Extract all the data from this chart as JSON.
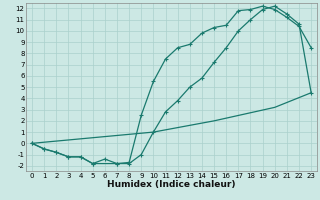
{
  "title": "",
  "xlabel": "Humidex (Indice chaleur)",
  "xlim": [
    -0.5,
    23.5
  ],
  "ylim": [
    -2.5,
    12.5
  ],
  "xticks": [
    0,
    1,
    2,
    3,
    4,
    5,
    6,
    7,
    8,
    9,
    10,
    11,
    12,
    13,
    14,
    15,
    16,
    17,
    18,
    19,
    20,
    21,
    22,
    23
  ],
  "yticks": [
    -2,
    -1,
    0,
    1,
    2,
    3,
    4,
    5,
    6,
    7,
    8,
    9,
    10,
    11,
    12
  ],
  "bg_color": "#cce8e4",
  "grid_color": "#aad0cc",
  "line_color": "#1a7a6e",
  "line1_x": [
    0,
    1,
    2,
    3,
    4,
    5,
    7,
    8,
    9,
    10,
    11,
    12,
    13,
    14,
    15,
    16,
    17,
    18,
    19,
    20,
    21,
    22,
    23
  ],
  "line1_y": [
    0,
    -0.5,
    -0.8,
    -1.2,
    -1.2,
    -1.8,
    -1.8,
    -1.7,
    2.5,
    5.5,
    7.5,
    8.5,
    8.8,
    9.8,
    10.3,
    10.5,
    11.8,
    11.9,
    12.2,
    11.9,
    11.2,
    10.4,
    8.5
  ],
  "line2_x": [
    0,
    1,
    2,
    3,
    4,
    5,
    6,
    7,
    8,
    9,
    10,
    11,
    12,
    13,
    14,
    15,
    16,
    17,
    18,
    19,
    20,
    21,
    22,
    23
  ],
  "line2_y": [
    0,
    -0.5,
    -0.8,
    -1.2,
    -1.2,
    -1.8,
    -1.4,
    -1.8,
    -1.8,
    -1.0,
    1.0,
    2.8,
    3.8,
    5.0,
    5.8,
    7.2,
    8.5,
    10.0,
    11.0,
    11.9,
    12.2,
    11.5,
    10.6,
    4.5
  ],
  "line3_x": [
    0,
    10,
    15,
    20,
    23
  ],
  "line3_y": [
    0,
    1.0,
    2.0,
    3.2,
    4.5
  ],
  "marker": "+"
}
